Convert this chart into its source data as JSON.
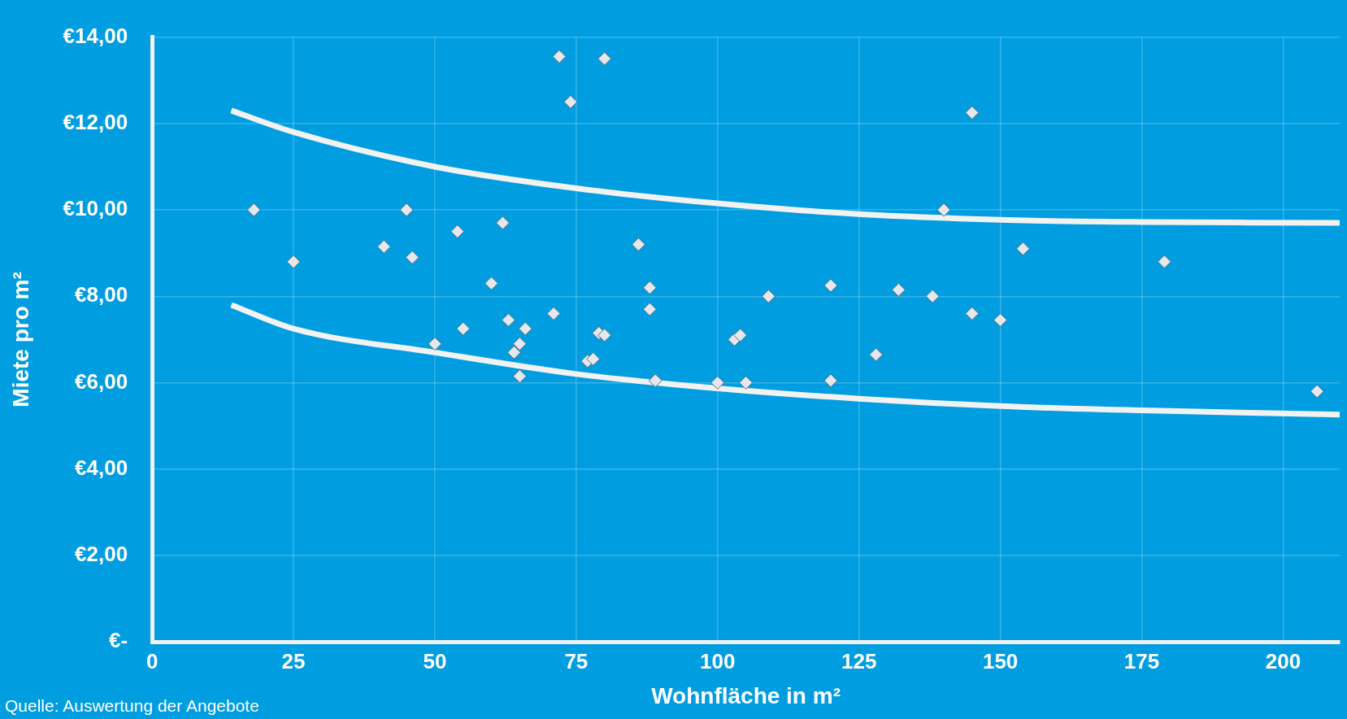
{
  "chart_data": {
    "type": "scatter",
    "xlabel": "Wohnfläche in m²",
    "ylabel": "Miete pro m²",
    "annotations": [
      "Quelle: Auswertung der Angebote"
    ],
    "xlim": [
      0,
      210
    ],
    "ylim": [
      0,
      14
    ],
    "xticks": [
      0,
      25,
      50,
      75,
      100,
      125,
      150,
      175,
      200
    ],
    "yticks": [
      {
        "value": 0,
        "label": "€-"
      },
      {
        "value": 2,
        "label": "€2,00"
      },
      {
        "value": 4,
        "label": "€4,00"
      },
      {
        "value": 6,
        "label": "€6,00"
      },
      {
        "value": 8,
        "label": "€8,00"
      },
      {
        "value": 10,
        "label": "€10,00"
      },
      {
        "value": 12,
        "label": "€12,00"
      },
      {
        "value": 14,
        "label": "€14,00"
      }
    ],
    "grid": true,
    "legend": false,
    "marker": "diamond",
    "series": [
      {
        "color": "#e3e8ee",
        "x": [
          18,
          25,
          41,
          45,
          46,
          50,
          54,
          55,
          60,
          62,
          63,
          64,
          65,
          65,
          66,
          71,
          72,
          74,
          77,
          78,
          79,
          80,
          80,
          86,
          88,
          88,
          89,
          100,
          103,
          104,
          105,
          109,
          120,
          120,
          128,
          132,
          138,
          140,
          145,
          145,
          150,
          154,
          179,
          206
        ],
        "values": [
          10.0,
          8.8,
          9.15,
          10.0,
          8.9,
          6.9,
          9.5,
          7.25,
          8.3,
          9.7,
          7.45,
          6.7,
          6.9,
          6.15,
          7.25,
          7.6,
          13.55,
          12.5,
          6.5,
          6.55,
          7.15,
          7.1,
          13.5,
          9.2,
          8.2,
          7.7,
          6.05,
          6.0,
          7.0,
          7.1,
          6.0,
          8.0,
          8.25,
          6.05,
          6.65,
          8.15,
          8.0,
          10.0,
          7.6,
          12.25,
          7.45,
          9.1,
          8.8,
          5.8
        ]
      },
      {
        "type": "line",
        "marker": "none",
        "color": "#f2f2f2",
        "x": [
          14,
          25,
          50,
          75,
          100,
          125,
          150,
          175,
          210
        ],
        "values": [
          12.3,
          11.8,
          11.0,
          10.5,
          10.15,
          9.9,
          9.77,
          9.72,
          9.7
        ]
      },
      {
        "type": "line",
        "marker": "none",
        "color": "#f2f2f2",
        "x": [
          14,
          25,
          50,
          75,
          100,
          125,
          150,
          175,
          210
        ],
        "values": [
          7.8,
          7.25,
          6.7,
          6.2,
          5.87,
          5.63,
          5.46,
          5.36,
          5.26
        ]
      }
    ]
  }
}
